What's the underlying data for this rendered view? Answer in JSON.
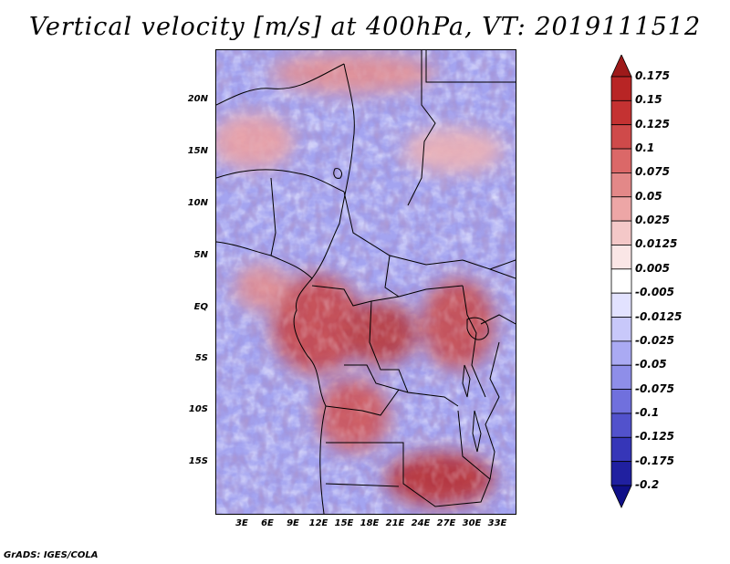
{
  "title": "Vertical velocity [m/s] at 400hPa, VT: 2019111512",
  "footer": "GrADS: IGES/COLA",
  "map": {
    "lat_ticks": [
      "20N",
      "15N",
      "10N",
      "5N",
      "EQ",
      "5S",
      "10S",
      "15S"
    ],
    "lon_ticks": [
      "3E",
      "6E",
      "9E",
      "12E",
      "15E",
      "18E",
      "21E",
      "24E",
      "27E",
      "30E",
      "33E"
    ]
  },
  "colorbar": {
    "labels": [
      "0.175",
      "0.15",
      "0.125",
      "0.1",
      "0.075",
      "0.05",
      "0.025",
      "0.0125",
      "0.005",
      "-0.005",
      "-0.0125",
      "-0.025",
      "-0.05",
      "-0.075",
      "-0.1",
      "-0.125",
      "-0.175",
      "-0.2"
    ],
    "colors": [
      "#9e1a1a",
      "#b82525",
      "#c43232",
      "#cf4a4a",
      "#db6868",
      "#e38888",
      "#eda6a6",
      "#f4c8c8",
      "#fae6e6",
      "#ffffff",
      "#e2e2ff",
      "#c8c8fa",
      "#aaaaf3",
      "#8e8ee9",
      "#7070dd",
      "#5252cc",
      "#3636b8",
      "#2020a0",
      "#101088"
    ]
  }
}
